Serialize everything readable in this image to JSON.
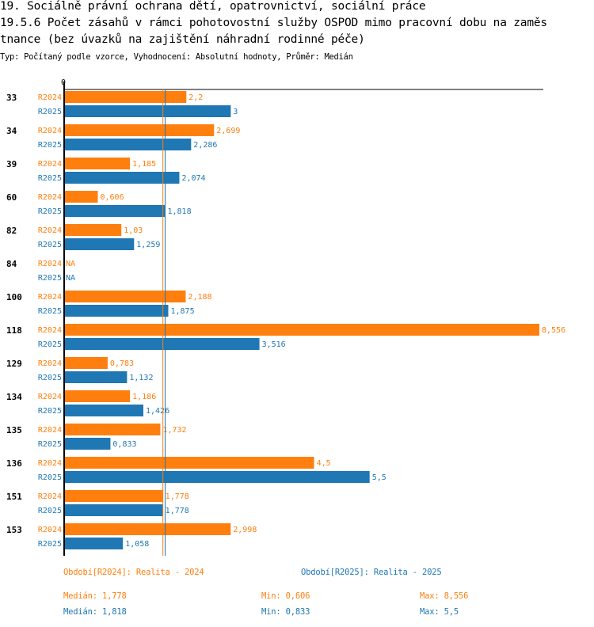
{
  "header": {
    "title_line1": "19. Sociálně právní ochrana dětí, opatrovnictví, sociální práce",
    "title_line2": "19.5.6 Počet zásahů v rámci pohotovostní služby OSPOD mimo pracovní dobu na zaměs",
    "title_line3": "tnance (bez úvazků na zajištění náhradní rodinné péče)",
    "subtitle": "Typ: Počítaný podle vzorce, Vyhodnocení: Absolutní hodnoty, Průměr: Medián"
  },
  "colors": {
    "R2024": "#ff7f0e",
    "R2025": "#1f77b4",
    "axis": "#000000"
  },
  "chart_data": {
    "type": "bar",
    "orientation": "horizontal",
    "title": "19.5.6 Počet zásahů v rámci pohotovostní služby OSPOD mimo pracovní dobu na zaměstnance (bez úvazků na zajištění náhradní rodinné péče)",
    "xlabel": "",
    "ylabel": "",
    "axis_zero_label": "0",
    "xlim": [
      0,
      8.556
    ],
    "grid": false,
    "categories": [
      "33",
      "34",
      "39",
      "60",
      "82",
      "84",
      "100",
      "118",
      "129",
      "134",
      "135",
      "136",
      "151",
      "153"
    ],
    "series": [
      {
        "name": "R2024",
        "legend": "Období[R2024]: Realita - 2024",
        "values": [
          2.2,
          2.699,
          1.185,
          0.606,
          1.03,
          null,
          2.188,
          8.556,
          0.783,
          1.186,
          1.732,
          4.5,
          1.778,
          2.998
        ],
        "labels": [
          "2,2",
          "2,699",
          "1,185",
          "0,606",
          "1,03",
          "NA",
          "2,188",
          "8,556",
          "0,783",
          "1,186",
          "1,732",
          "4,5",
          "1,778",
          "2,998"
        ],
        "median": 1.778
      },
      {
        "name": "R2025",
        "legend": "Období[R2025]: Realita - 2025",
        "values": [
          3,
          2.286,
          2.074,
          1.818,
          1.259,
          null,
          1.875,
          3.516,
          1.132,
          1.426,
          0.833,
          5.5,
          1.778,
          1.058
        ],
        "labels": [
          "3",
          "2,286",
          "2,074",
          "1,818",
          "1,259",
          "NA",
          "1,875",
          "3,516",
          "1,132",
          "1,426",
          "0,833",
          "5,5",
          "1,778",
          "1,058"
        ],
        "median": 1.818
      }
    ],
    "legend_placement": "bottom"
  },
  "stats": {
    "R2024": {
      "median": "Medián: 1,778",
      "min": "Min: 0,606",
      "max": "Max: 8,556"
    },
    "R2025": {
      "median": "Medián: 1,818",
      "min": "Min: 0,833",
      "max": "Max: 5,5"
    }
  }
}
